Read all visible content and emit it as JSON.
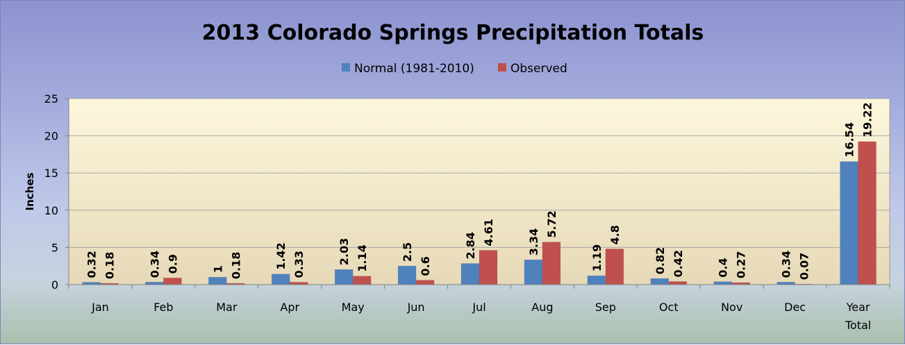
{
  "chart_data": {
    "type": "bar",
    "title": "2013 Colorado Springs Precipitation Totals",
    "ylabel": "Inches",
    "xlabel": "",
    "ylim": [
      0,
      25
    ],
    "yticks": [
      "0",
      "5",
      "10",
      "15",
      "20",
      "25"
    ],
    "grid": true,
    "legend_position": "top-center",
    "categories": [
      "Jan",
      "Feb",
      "Mar",
      "Apr",
      "May",
      "Jun",
      "Jul",
      "Aug",
      "Sep",
      "Oct",
      "Nov",
      "Dec",
      "Year Total"
    ],
    "series": [
      {
        "name": "Normal (1981-2010)",
        "color": "#4f81bd",
        "values": [
          0.32,
          0.34,
          1,
          1.42,
          2.03,
          2.5,
          2.84,
          3.34,
          1.19,
          0.82,
          0.4,
          0.34,
          16.54
        ],
        "labels": [
          "0.32",
          "0.34",
          "1",
          "1.42",
          "2.03",
          "2.5",
          "2.84",
          "3.34",
          "1.19",
          "0.82",
          "0.4",
          "0.34",
          "16.54"
        ]
      },
      {
        "name": "Observed",
        "color": "#c0504d",
        "values": [
          0.18,
          0.9,
          0.18,
          0.33,
          1.14,
          0.6,
          4.61,
          5.72,
          4.8,
          0.42,
          0.27,
          0.07,
          19.22
        ],
        "labels": [
          "0.18",
          "0.9",
          "0.18",
          "0.33",
          "1.14",
          "0.6",
          "4.61",
          "5.72",
          "4.8",
          "0.42",
          "0.27",
          "0.07",
          "19.22"
        ]
      }
    ],
    "plot_background": [
      "#fdf7dc",
      "#e6d9b8"
    ]
  }
}
